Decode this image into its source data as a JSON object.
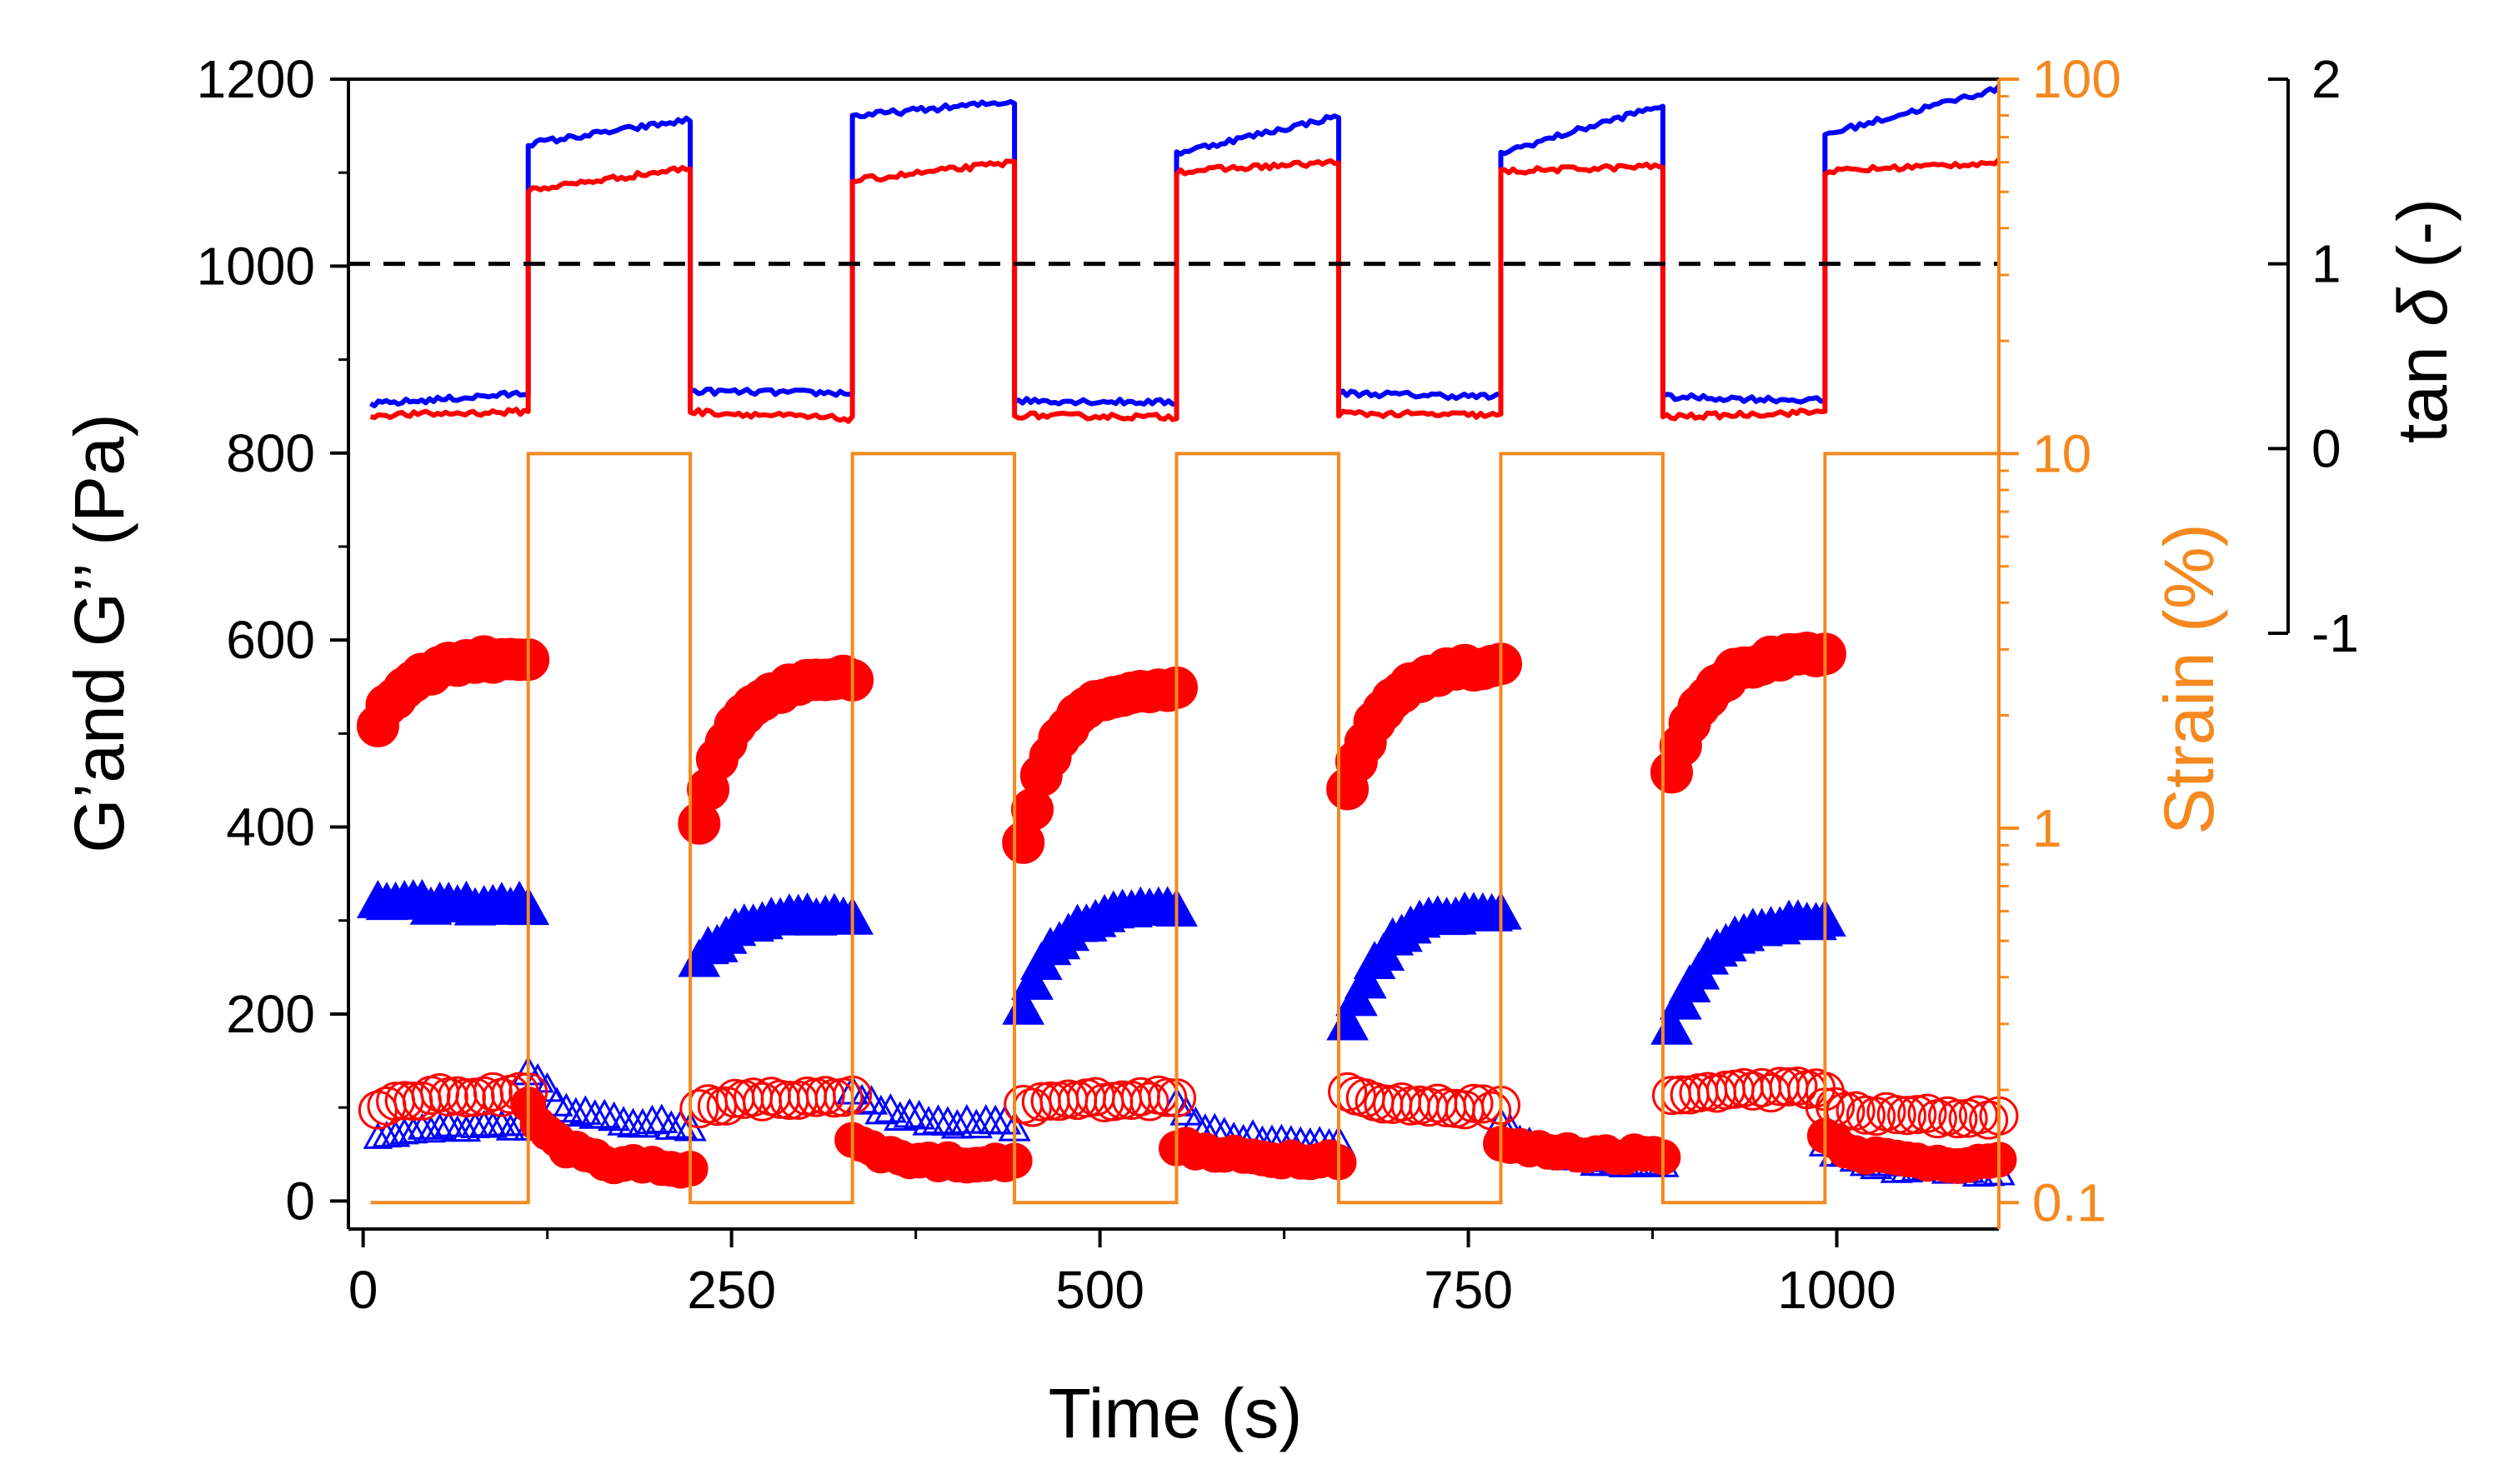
{
  "chart_data": {
    "type": "line",
    "title": "",
    "xlabel": "Time (s)",
    "xlim": [
      -10,
      1110
    ],
    "x_ticks": [
      0,
      250,
      500,
      750,
      1000
    ],
    "x_tick_labels": [
      "0",
      "250",
      "500",
      "750",
      "1000"
    ],
    "y_left": {
      "label": "G’and G’’ (Pa)",
      "lim": [
        -30,
        1200
      ],
      "ticks": [
        0,
        200,
        400,
        600,
        800,
        1000,
        1200
      ],
      "tick_labels": [
        "0",
        "200",
        "400",
        "600",
        "800",
        "1000",
        "1200"
      ]
    },
    "y_strain": {
      "label": "Strain (%)",
      "scale": "log",
      "lim": [
        0.085,
        100
      ],
      "ticks": [
        0.1,
        1,
        10,
        100
      ],
      "tick_labels": [
        "0.1",
        "1",
        "10",
        "100"
      ],
      "color": "#F5891F"
    },
    "y_tan": {
      "label_prefix": "tan ",
      "label_symbol": "δ",
      "label_suffix": " (-)",
      "lim": [
        -1,
        2
      ],
      "ticks": [
        -1,
        0,
        1,
        2
      ],
      "tick_labels": [
        "-1",
        "0",
        "1",
        "2"
      ]
    },
    "reference_line": {
      "axis": "tan",
      "value": 1,
      "style": "dashed",
      "color": "#000000"
    },
    "segments": [
      {
        "start": 5,
        "end": 112,
        "strain": 0.1
      },
      {
        "start": 112,
        "end": 222,
        "strain": 10
      },
      {
        "start": 222,
        "end": 332,
        "strain": 0.1
      },
      {
        "start": 332,
        "end": 442,
        "strain": 10
      },
      {
        "start": 442,
        "end": 552,
        "strain": 0.1
      },
      {
        "start": 552,
        "end": 662,
        "strain": 10
      },
      {
        "start": 662,
        "end": 772,
        "strain": 0.1
      },
      {
        "start": 772,
        "end": 882,
        "strain": 10
      },
      {
        "start": 882,
        "end": 992,
        "strain": 0.1
      },
      {
        "start": 992,
        "end": 1110,
        "strain": 10
      }
    ],
    "series": [
      {
        "name": "G' at strain 0.1%",
        "axis": "left",
        "marker": "circle",
        "fill": "filled",
        "color": "#FF0000",
        "low_segments": [
          {
            "start": 10,
            "end": 112,
            "start_value": 510,
            "end_value": 582
          },
          {
            "start": 228,
            "end": 332,
            "start_value": 405,
            "end_value": 560
          },
          {
            "start": 448,
            "end": 552,
            "start_value": 383,
            "end_value": 552
          },
          {
            "start": 668,
            "end": 772,
            "start_value": 437,
            "end_value": 575
          },
          {
            "start": 888,
            "end": 992,
            "start_value": 462,
            "end_value": 585
          }
        ]
      },
      {
        "name": "G'' at strain 0.1%",
        "axis": "left",
        "marker": "triangle",
        "fill": "filled",
        "color": "#0000FF",
        "low_segments": [
          {
            "start": 10,
            "end": 112,
            "start_value": 320,
            "end_value": 315
          },
          {
            "start": 228,
            "end": 332,
            "start_value": 255,
            "end_value": 305
          },
          {
            "start": 448,
            "end": 552,
            "start_value": 205,
            "end_value": 315
          },
          {
            "start": 668,
            "end": 772,
            "start_value": 185,
            "end_value": 310
          },
          {
            "start": 888,
            "end": 992,
            "start_value": 180,
            "end_value": 300
          }
        ]
      },
      {
        "name": "G' at strain 10%",
        "axis": "left",
        "marker": "circle",
        "fill": "filled",
        "color": "#FF0000",
        "high_segments": [
          {
            "start": 112,
            "end": 222,
            "start_value": 100,
            "end_value": 35
          },
          {
            "start": 332,
            "end": 442,
            "start_value": 65,
            "end_value": 40
          },
          {
            "start": 552,
            "end": 662,
            "start_value": 60,
            "end_value": 45
          },
          {
            "start": 772,
            "end": 882,
            "start_value": 62,
            "end_value": 50
          },
          {
            "start": 992,
            "end": 1110,
            "start_value": 70,
            "end_value": 40
          }
        ]
      },
      {
        "name": "G'' at strain 10%",
        "axis": "left",
        "marker": "triangle",
        "fill": "open",
        "color": "#0000FF",
        "high_segments": [
          {
            "start": 112,
            "end": 222,
            "start_value": 140,
            "end_value": 80
          },
          {
            "start": 332,
            "end": 442,
            "start_value": 118,
            "end_value": 80
          },
          {
            "start": 552,
            "end": 662,
            "start_value": 100,
            "end_value": 60
          },
          {
            "start": 772,
            "end": 882,
            "start_value": 85,
            "end_value": 40
          },
          {
            "start": 992,
            "end": 1110,
            "start_value": 60,
            "end_value": 30
          }
        ]
      },
      {
        "name": "G' open (overlay)",
        "axis": "left",
        "marker": "circle",
        "fill": "open",
        "color": "#FF0000",
        "points_segments": [
          {
            "start": 10,
            "end": 112,
            "start_value": 95,
            "end_value": 115
          },
          {
            "start": 228,
            "end": 332,
            "start_value": 100,
            "end_value": 110
          },
          {
            "start": 448,
            "end": 552,
            "start_value": 100,
            "end_value": 110
          },
          {
            "start": 668,
            "end": 772,
            "start_value": 120,
            "end_value": 100
          },
          {
            "start": 888,
            "end": 992,
            "start_value": 110,
            "end_value": 120
          },
          {
            "start": 992,
            "end": 1110,
            "start_value": 100,
            "end_value": 90
          }
        ]
      },
      {
        "name": "G'' open low (overlay)",
        "axis": "left",
        "marker": "triangle",
        "fill": "open",
        "color": "#0000FF",
        "points_segments": [
          {
            "start": 10,
            "end": 112,
            "start_value": 65,
            "end_value": 80
          }
        ]
      },
      {
        "name": "tan delta (blue)",
        "axis": "tan",
        "type": "line",
        "color": "#0000FF",
        "levels": [
          {
            "start": 5,
            "end": 112,
            "from": 0.24,
            "to": 0.3
          },
          {
            "start": 112,
            "end": 222,
            "from": 1.65,
            "to": 1.78
          },
          {
            "start": 222,
            "end": 332,
            "from": 0.31,
            "to": 0.3
          },
          {
            "start": 332,
            "end": 442,
            "from": 1.8,
            "to": 1.88
          },
          {
            "start": 442,
            "end": 552,
            "from": 0.26,
            "to": 0.25
          },
          {
            "start": 552,
            "end": 662,
            "from": 1.6,
            "to": 1.8
          },
          {
            "start": 662,
            "end": 772,
            "from": 0.3,
            "to": 0.28
          },
          {
            "start": 772,
            "end": 882,
            "from": 1.6,
            "to": 1.86
          },
          {
            "start": 882,
            "end": 992,
            "from": 0.28,
            "to": 0.26
          },
          {
            "start": 992,
            "end": 1110,
            "from": 1.7,
            "to": 1.95
          }
        ]
      },
      {
        "name": "tan delta (red)",
        "axis": "tan",
        "type": "line",
        "color": "#FF0000",
        "levels": [
          {
            "start": 5,
            "end": 112,
            "from": 0.18,
            "to": 0.2
          },
          {
            "start": 112,
            "end": 222,
            "from": 1.4,
            "to": 1.52
          },
          {
            "start": 222,
            "end": 332,
            "from": 0.2,
            "to": 0.16
          },
          {
            "start": 332,
            "end": 442,
            "from": 1.45,
            "to": 1.55
          },
          {
            "start": 442,
            "end": 552,
            "from": 0.18,
            "to": 0.17
          },
          {
            "start": 552,
            "end": 662,
            "from": 1.5,
            "to": 1.55
          },
          {
            "start": 662,
            "end": 772,
            "from": 0.19,
            "to": 0.18
          },
          {
            "start": 772,
            "end": 882,
            "from": 1.5,
            "to": 1.53
          },
          {
            "start": 882,
            "end": 992,
            "from": 0.17,
            "to": 0.2
          },
          {
            "start": 992,
            "end": 1110,
            "from": 1.5,
            "to": 1.55
          }
        ]
      }
    ],
    "colors": {
      "strain": "#F5891F",
      "gprime": "#FF0000",
      "gdouble": "#0000FF",
      "axis": "#000000"
    }
  }
}
